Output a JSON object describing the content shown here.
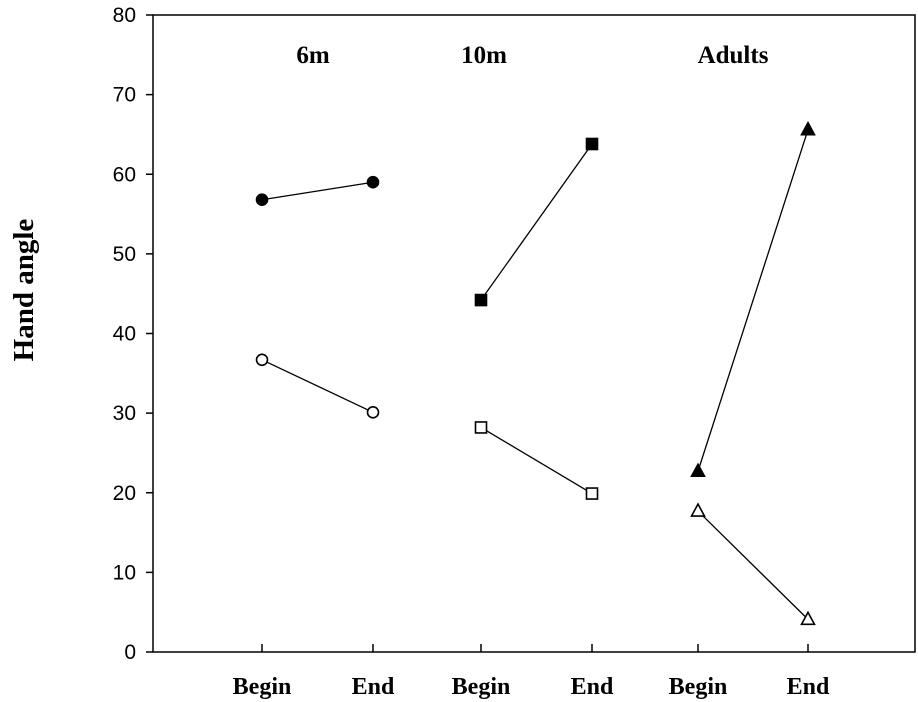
{
  "chart_data": {
    "type": "line",
    "xlabel": "",
    "ylabel": "Hand angle",
    "ylim": [
      0,
      80
    ],
    "yticks": [
      "0",
      "10",
      "20",
      "30",
      "40",
      "50",
      "60",
      "70",
      "80"
    ],
    "grid": false,
    "groups": [
      {
        "label": "6m",
        "categories": [
          "Begin",
          "End"
        ],
        "series": [
          {
            "marker": "filled-circle",
            "values": [
              56.8,
              59.0
            ]
          },
          {
            "marker": "open-circle",
            "values": [
              36.7,
              30.1
            ]
          }
        ]
      },
      {
        "label": "10m",
        "categories": [
          "Begin",
          "End"
        ],
        "series": [
          {
            "marker": "filled-square",
            "values": [
              44.2,
              63.8
            ]
          },
          {
            "marker": "open-square",
            "values": [
              28.2,
              19.9
            ]
          }
        ]
      },
      {
        "label": "Adults",
        "categories": [
          "Begin",
          "End"
        ],
        "series": [
          {
            "marker": "filled-triangle",
            "values": [
              22.7,
              65.6
            ]
          },
          {
            "marker": "open-triangle",
            "values": [
              17.7,
              4.1
            ]
          }
        ]
      }
    ]
  }
}
